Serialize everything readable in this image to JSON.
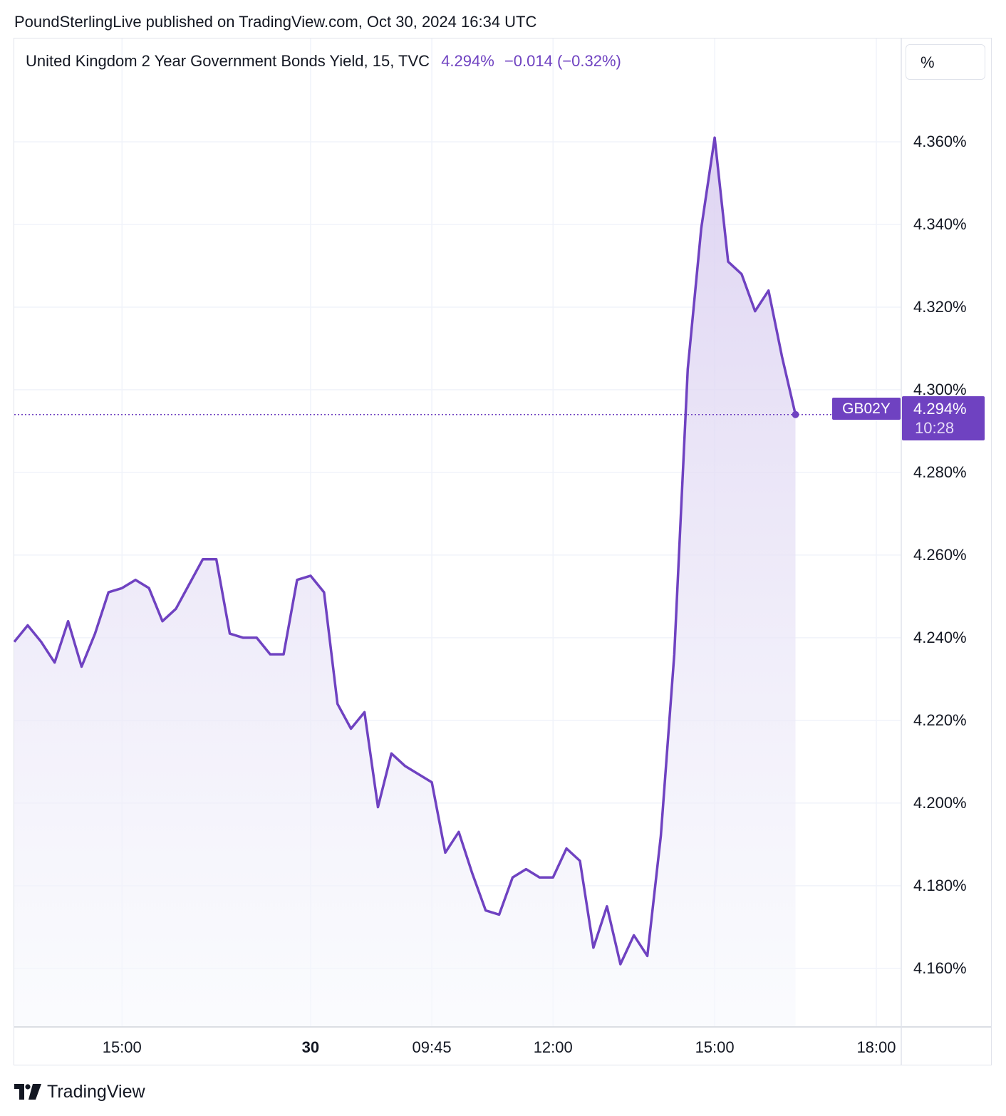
{
  "published": "PoundSterlingLive published on TradingView.com, Oct 30, 2024 16:34 UTC",
  "legend": {
    "symbol": "United Kingdom 2 Year Government Bonds Yield, 15, TVC",
    "last": "4.294%",
    "change": "−0.014 (−0.32%)"
  },
  "unit_button": "%",
  "price_tag": {
    "symbol": "GB02Y",
    "value": "4.294%",
    "countdown": "10:28"
  },
  "brand": "TradingView",
  "colors": {
    "line": "#6f42c1",
    "grid": "#f0f3fa",
    "fill_top": "#d9cdf0",
    "fill_bottom": "#f7f9fd"
  },
  "chart_data": {
    "type": "area",
    "title": "United Kingdom 2 Year Government Bonds Yield, 15, TVC",
    "ylabel": "%",
    "ylim": [
      4.146,
      4.385
    ],
    "y_ticks": [
      "4.360%",
      "4.340%",
      "4.320%",
      "4.300%",
      "4.280%",
      "4.260%",
      "4.240%",
      "4.220%",
      "4.200%",
      "4.180%",
      "4.160%"
    ],
    "y_tick_values": [
      4.36,
      4.34,
      4.32,
      4.3,
      4.28,
      4.26,
      4.24,
      4.22,
      4.2,
      4.18,
      4.16
    ],
    "x_ticks": [
      {
        "label": "15:00",
        "bar": 8,
        "bold": false
      },
      {
        "label": "30",
        "bar": 22,
        "bold": true
      },
      {
        "label": "09:45",
        "bar": 31,
        "bold": false
      },
      {
        "label": "12:00",
        "bar": 40,
        "bold": false
      },
      {
        "label": "15:00",
        "bar": 52,
        "bold": false
      },
      {
        "label": "18:00",
        "bar": 64,
        "bold": false
      }
    ],
    "x_range_bars": [
      0,
      65.8
    ],
    "series": [
      {
        "values": [
          4.239,
          4.243,
          4.239,
          4.234,
          4.244,
          4.233,
          4.241,
          4.251,
          4.252,
          4.254,
          4.252,
          4.244,
          4.247,
          4.253,
          4.259,
          4.259,
          4.241,
          4.24,
          4.24,
          4.236,
          4.236,
          4.254,
          4.255,
          4.251,
          4.224,
          4.218,
          4.222,
          4.199,
          4.212,
          4.209,
          4.207,
          4.205,
          4.188,
          4.193,
          4.183,
          4.174,
          4.173,
          4.182,
          4.184,
          4.182,
          4.182,
          4.189,
          4.186,
          4.165,
          4.175,
          4.161,
          4.168,
          4.163,
          4.192,
          4.236,
          4.305,
          4.339,
          4.361,
          4.331,
          4.328,
          4.319,
          4.324,
          4.308,
          4.294
        ]
      }
    ],
    "last_value": 4.294
  }
}
